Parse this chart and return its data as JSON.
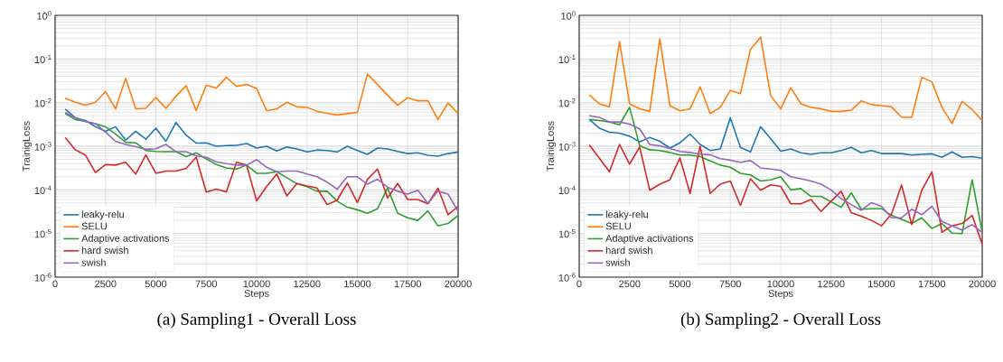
{
  "chart_data": [
    {
      "type": "line",
      "title": "(a) Sampling1 - Overall Loss",
      "xlabel": "Steps",
      "ylabel": "TrainigLoss",
      "log": "y",
      "grid": true,
      "legend": "bottom left",
      "marker": "none",
      "line_style": "solid",
      "xlim": [
        0,
        20000
      ],
      "xticks": [
        0,
        2500,
        5000,
        7500,
        10000,
        12500,
        15000,
        17500,
        20000
      ],
      "ylim": [
        1e-06,
        1
      ],
      "yticks": [
        {
          "value": 1e-06,
          "label": "10$^{-6}$"
        },
        {
          "value": 1e-05,
          "label": "10$^{-5}$"
        },
        {
          "value": 0.0001,
          "label": "10$^{-4}$"
        },
        {
          "value": 0.001,
          "label": "10$^{-3}$"
        },
        {
          "value": 0.01,
          "label": "10$^{-2}$"
        },
        {
          "value": 0.1,
          "label": "10$^{-1}$"
        },
        {
          "value": 1,
          "label": "10$^{0}$"
        }
      ],
      "x": [
        500,
        1000,
        1500,
        2000,
        2500,
        3000,
        3500,
        4000,
        4500,
        5000,
        5500,
        6000,
        6500,
        7000,
        7500,
        8000,
        8500,
        9000,
        9500,
        10000,
        10500,
        11000,
        11500,
        12000,
        12500,
        13000,
        13500,
        14000,
        14500,
        15000,
        15500,
        16000,
        16500,
        17000,
        17500,
        18000,
        18500,
        19000,
        19500,
        20000
      ],
      "series": [
        {
          "name": "leaky-relu",
          "color": "#1f77b4",
          "values": [
            0.0071,
            0.0045,
            0.0039,
            0.0028,
            0.0022,
            0.0028,
            0.00138,
            0.0022,
            0.00145,
            0.0026,
            0.0013,
            0.0035,
            0.0018,
            0.00118,
            0.0012,
            0.001,
            0.00104,
            0.00105,
            0.00115,
            0.00091,
            0.001,
            0.00078,
            0.00096,
            0.00087,
            0.00074,
            0.00082,
            0.0008,
            0.00074,
            0.001,
            0.0008,
            0.00065,
            0.00091,
            0.00087,
            0.00076,
            0.00068,
            0.00071,
            0.00062,
            0.00059,
            0.00068,
            0.00074
          ]
        },
        {
          "name": "SELU",
          "color": "#ff7f0e",
          "values": [
            0.0126,
            0.0102,
            0.0087,
            0.0102,
            0.0178,
            0.0072,
            0.036,
            0.0072,
            0.0074,
            0.013,
            0.0074,
            0.014,
            0.0245,
            0.0066,
            0.025,
            0.0215,
            0.038,
            0.0236,
            0.026,
            0.021,
            0.0065,
            0.0072,
            0.0102,
            0.008,
            0.0078,
            0.0063,
            0.0057,
            0.0052,
            0.0056,
            0.006,
            0.045,
            0.026,
            0.0147,
            0.0087,
            0.013,
            0.011,
            0.011,
            0.0041,
            0.0098,
            0.0056
          ]
        },
        {
          "name": "Adaptive activations",
          "color": "#2ca02c",
          "values": [
            0.0056,
            0.0041,
            0.0037,
            0.0033,
            0.0028,
            0.0019,
            0.00123,
            0.0012,
            0.0008,
            0.00076,
            0.00075,
            0.00075,
            0.00058,
            0.00071,
            0.00051,
            0.00038,
            0.00032,
            0.0003,
            0.00037,
            0.00024,
            0.00024,
            0.00026,
            0.00019,
            0.000138,
            0.000118,
            9.3e-05,
            9.3e-05,
            5.5e-05,
            4e-05,
            3.5e-05,
            2.9e-05,
            3.7e-05,
            0.00011,
            2.9e-05,
            2.3e-05,
            2e-05,
            3.3e-05,
            1.5e-05,
            1.7e-05,
            2.6e-05
          ]
        },
        {
          "name": "hard swish",
          "color": "#d62728",
          "values": [
            0.0016,
            0.00083,
            0.00063,
            0.00025,
            0.00038,
            0.00037,
            0.00043,
            0.00023,
            0.00063,
            0.00024,
            0.00027,
            0.00027,
            0.00031,
            0.00056,
            8.9e-05,
            0.000104,
            9e-05,
            0.00043,
            0.00037,
            5.6e-05,
            0.00012,
            0.00023,
            7.3e-05,
            0.00014,
            0.000123,
            0.00011,
            4.6e-05,
            5.8e-05,
            0.000145,
            5.1e-05,
            0.000175,
            0.0003,
            6.5e-05,
            0.00014,
            6e-05,
            6e-05,
            4.8e-05,
            0.00011,
            2.7e-05,
            4.2e-05
          ]
        },
        {
          "name": "swish",
          "color": "#9467bd",
          "values": [
            0.0059,
            0.0045,
            0.0037,
            0.0033,
            0.0021,
            0.0013,
            0.0011,
            0.00098,
            0.00085,
            0.00088,
            0.0011,
            0.00075,
            0.00075,
            0.0006,
            0.00056,
            0.00044,
            0.0004,
            0.00037,
            0.00037,
            0.00049,
            0.00033,
            0.00026,
            0.00027,
            0.00027,
            0.00023,
            0.0002,
            0.00015,
            0.000104,
            0.0002,
            0.0002,
            0.000135,
            0.000175,
            0.000115,
            9.3e-05,
            8e-05,
            9.8e-05,
            4.9e-05,
            9.4e-05,
            8e-05,
            3.2e-05
          ]
        }
      ]
    },
    {
      "type": "line",
      "title": "(b) Sampling2 - Overall Loss",
      "xlabel": "Steps",
      "ylabel": "TrainigLoss",
      "log": "y",
      "grid": true,
      "legend": "bottom left",
      "marker": "none",
      "line_style": "solid",
      "xlim": [
        0,
        20000
      ],
      "xticks": [
        0,
        2500,
        5000,
        7500,
        10000,
        12500,
        15000,
        17500,
        20000
      ],
      "ylim": [
        1e-06,
        1
      ],
      "yticks": [
        {
          "value": 1e-06,
          "label": "10$^{-6}$"
        },
        {
          "value": 1e-05,
          "label": "10$^{-5}$"
        },
        {
          "value": 0.0001,
          "label": "10$^{-4}$"
        },
        {
          "value": 0.001,
          "label": "10$^{-3}$"
        },
        {
          "value": 0.01,
          "label": "10$^{-2}$"
        },
        {
          "value": 0.1,
          "label": "10$^{-1}$"
        },
        {
          "value": 1,
          "label": "10$^{0}$"
        }
      ],
      "x": [
        500,
        1000,
        1500,
        2000,
        2500,
        3000,
        3500,
        4000,
        4500,
        5000,
        5500,
        6000,
        6500,
        7000,
        7500,
        8000,
        8500,
        9000,
        9500,
        10000,
        10500,
        11000,
        11500,
        12000,
        12500,
        13000,
        13500,
        14000,
        14500,
        15000,
        15500,
        16000,
        16500,
        17000,
        17500,
        18000,
        18500,
        19000,
        19500,
        20000
      ],
      "series": [
        {
          "name": "leaky-relu",
          "color": "#1f77b4",
          "values": [
            0.0041,
            0.0026,
            0.0021,
            0.002,
            0.0017,
            0.00126,
            0.0016,
            0.0013,
            0.00091,
            0.0012,
            0.0019,
            0.0011,
            0.0008,
            0.00087,
            0.0045,
            0.00094,
            0.00074,
            0.0028,
            0.0015,
            0.00077,
            0.00087,
            0.00071,
            0.00065,
            0.00071,
            0.00071,
            0.0008,
            0.00094,
            0.00071,
            0.0008,
            0.00068,
            0.00068,
            0.00068,
            0.00063,
            0.00065,
            0.00067,
            0.00056,
            0.00074,
            0.00056,
            0.00058,
            0.00053
          ]
        },
        {
          "name": "SELU",
          "color": "#ff7f0e",
          "values": [
            0.015,
            0.0094,
            0.008,
            0.25,
            0.0094,
            0.0072,
            0.0063,
            0.29,
            0.0085,
            0.0065,
            0.0072,
            0.023,
            0.0056,
            0.0078,
            0.019,
            0.016,
            0.166,
            0.32,
            0.0145,
            0.0072,
            0.022,
            0.0094,
            0.0078,
            0.0072,
            0.0063,
            0.0063,
            0.0067,
            0.011,
            0.009,
            0.0085,
            0.008,
            0.0046,
            0.0046,
            0.038,
            0.03,
            0.0078,
            0.0033,
            0.0107,
            0.0069,
            0.0039
          ]
        },
        {
          "name": "Adaptive activations",
          "color": "#2ca02c",
          "values": [
            0.0041,
            0.0039,
            0.0036,
            0.0031,
            0.0078,
            0.00102,
            0.00083,
            0.0008,
            0.00072,
            0.00063,
            0.00063,
            0.00058,
            0.00046,
            0.00037,
            0.00033,
            0.00024,
            0.00022,
            0.00016,
            0.00017,
            0.0002,
            0.0001,
            0.000107,
            7.1e-05,
            7.1e-05,
            5.3e-05,
            4e-05,
            8.5e-05,
            3.6e-05,
            3.7e-05,
            3.7e-05,
            2.6e-05,
            2.1e-05,
            1.7e-05,
            2.3e-05,
            1.3e-05,
            1.7e-05,
            1.02e-05,
            1e-05,
            0.00017,
            1.07e-05
          ]
        },
        {
          "name": "hard swish",
          "color": "#d62728",
          "values": [
            0.00107,
            0.00053,
            0.00026,
            0.0011,
            0.00039,
            0.00096,
            9.8e-05,
            0.000135,
            0.00017,
            0.00054,
            8.3e-05,
            0.001,
            8.3e-05,
            0.000135,
            0.00016,
            4.4e-05,
            0.00018,
            9.8e-05,
            0.00013,
            0.00012,
            4.8e-05,
            4.8e-05,
            6e-05,
            3.2e-05,
            5.5e-05,
            9.3e-05,
            3e-05,
            2.5e-05,
            2e-05,
            1.5e-05,
            2.8e-05,
            0.00013,
            1.6e-05,
            9.8e-05,
            0.00026,
            1.07e-05,
            1.5e-05,
            1.7e-05,
            2.6e-05,
            5.7e-06
          ]
        },
        {
          "name": "swish",
          "color": "#9467bd",
          "values": [
            0.005,
            0.0046,
            0.0036,
            0.0036,
            0.0032,
            0.0025,
            0.0011,
            0.00102,
            0.00089,
            0.00076,
            0.00072,
            0.00066,
            0.00064,
            0.00052,
            0.00048,
            0.00043,
            0.00047,
            0.00032,
            0.0003,
            0.00028,
            0.0002,
            0.00018,
            0.00016,
            0.000135,
            0.0001,
            6.3e-05,
            4.6e-05,
            3.4e-05,
            5.1e-05,
            4.2e-05,
            2.3e-05,
            2.3e-05,
            3.6e-05,
            2.7e-05,
            4.2e-05,
            1.9e-05,
            1.5e-05,
            1.2e-05,
            1.6e-05,
            1.05e-05
          ]
        }
      ]
    }
  ]
}
